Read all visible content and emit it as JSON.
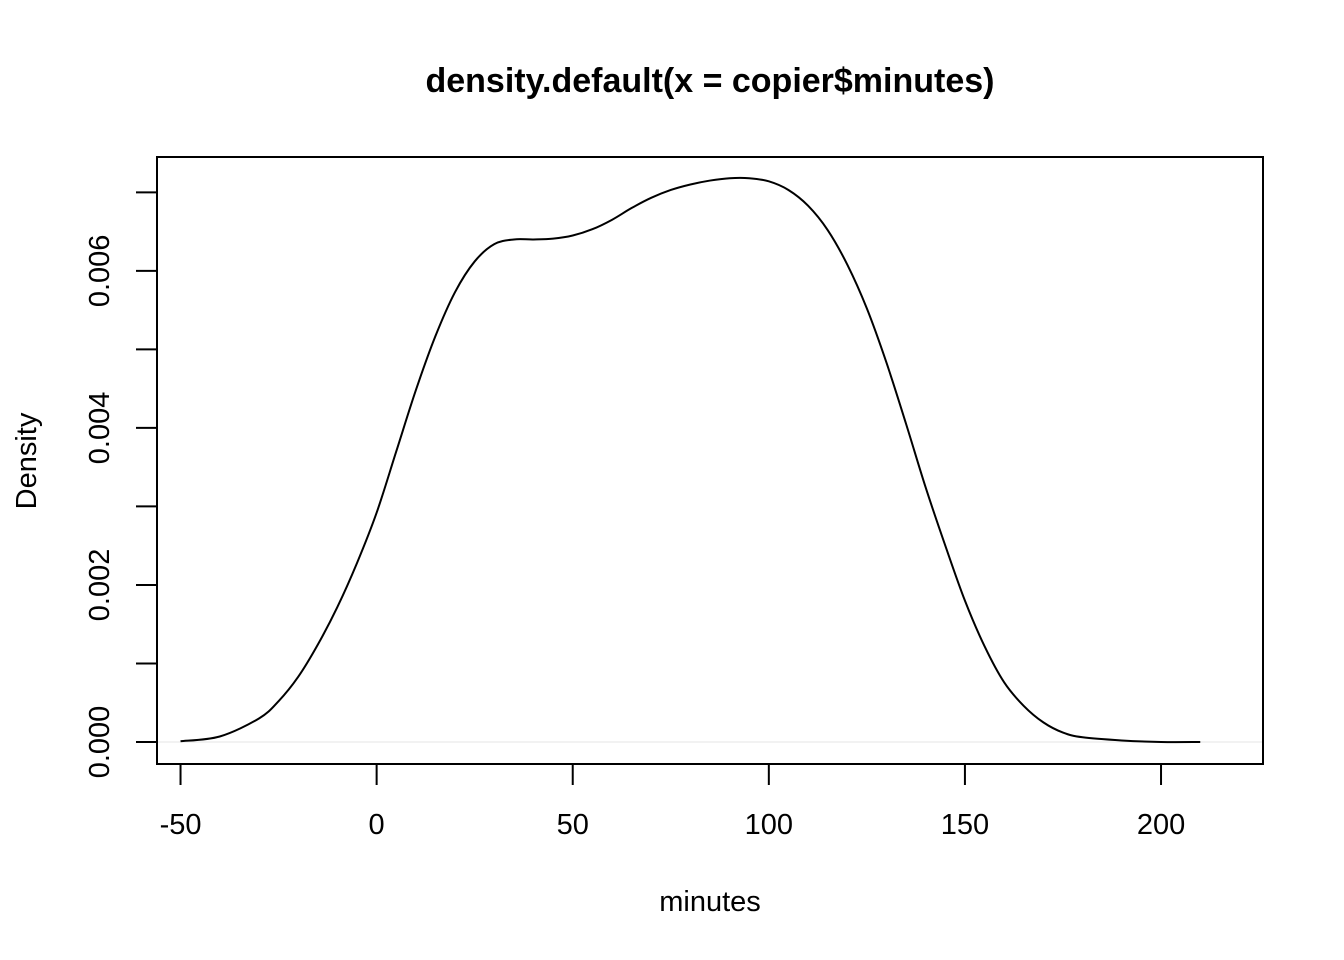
{
  "chart_data": {
    "type": "line",
    "title": "density.default(x = copier$minutes)",
    "xlabel": "minutes",
    "ylabel": "Density",
    "xlim": [
      -56,
      226
    ],
    "ylim": [
      -0.00028,
      0.00745
    ],
    "x_ticks": [
      -50,
      0,
      50,
      100,
      150,
      200
    ],
    "x_tick_labels": [
      "-50",
      "0",
      "50",
      "100",
      "150",
      "200"
    ],
    "y_ticks": [
      0.0,
      0.001,
      0.002,
      0.003,
      0.004,
      0.005,
      0.006,
      0.007
    ],
    "y_tick_labels": [
      {
        "value": 0.0,
        "label": "0.000"
      },
      {
        "value": 0.002,
        "label": "0.002"
      },
      {
        "value": 0.004,
        "label": "0.004"
      },
      {
        "value": 0.006,
        "label": "0.006"
      }
    ],
    "zero_line": true,
    "grid": false,
    "series": [
      {
        "color": "#000000",
        "x": [
          -50,
          -40,
          -30,
          -25,
          -20,
          -15,
          -10,
          -5,
          0,
          5,
          10,
          15,
          20,
          25,
          30,
          35,
          40,
          45,
          50,
          55,
          60,
          65,
          70,
          75,
          80,
          85,
          90,
          95,
          100,
          105,
          110,
          115,
          120,
          125,
          130,
          135,
          140,
          145,
          150,
          155,
          160,
          165,
          170,
          175,
          180,
          190,
          200,
          210
        ],
        "y": [
          1e-05,
          7e-05,
          0.0003,
          0.00052,
          0.00083,
          0.00124,
          0.00172,
          0.00228,
          0.00292,
          0.0037,
          0.00448,
          0.00517,
          0.00573,
          0.00612,
          0.00634,
          0.0064,
          0.0064,
          0.00641,
          0.00645,
          0.00653,
          0.00665,
          0.0068,
          0.00693,
          0.00703,
          0.0071,
          0.00715,
          0.00718,
          0.00718,
          0.00714,
          0.00703,
          0.00683,
          0.00652,
          0.00608,
          0.00552,
          0.00483,
          0.00405,
          0.00324,
          0.0025,
          0.0018,
          0.00122,
          0.00076,
          0.00046,
          0.00025,
          0.00012,
          6e-05,
          2e-05,
          0.0,
          0.0
        ]
      }
    ]
  }
}
